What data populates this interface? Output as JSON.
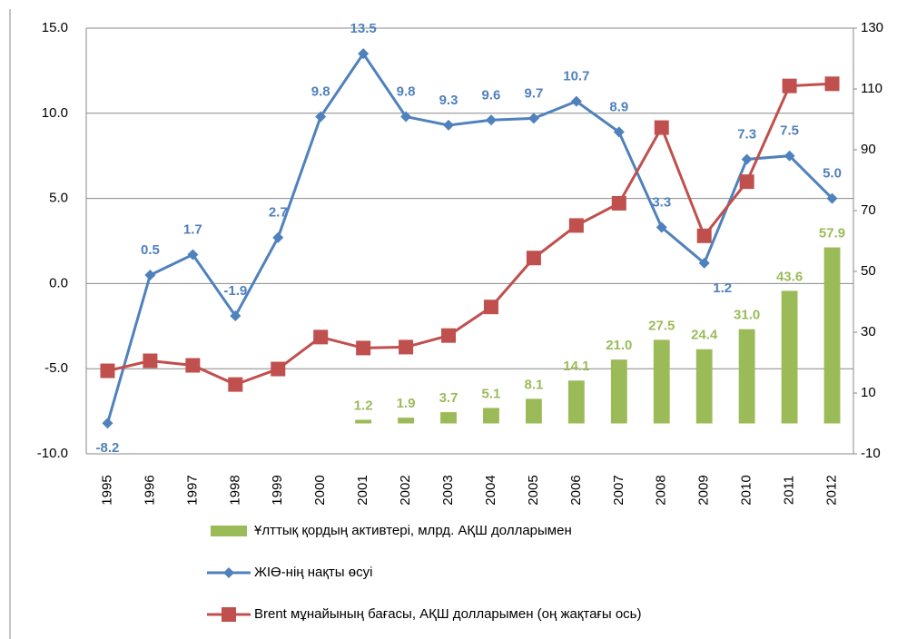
{
  "chart_data": {
    "type": "bar",
    "categories": [
      "1995",
      "1996",
      "1997",
      "1998",
      "1999",
      "2000",
      "2001",
      "2002",
      "2003",
      "2004",
      "2005",
      "2006",
      "2007",
      "2008",
      "2009",
      "2010",
      "2011",
      "2012"
    ],
    "series": [
      {
        "name": "Ұлттық қордың активтері, млрд. АҚШ долларымен",
        "type": "bar",
        "axis": "y2",
        "color": "#9bbb59",
        "values": [
          null,
          null,
          null,
          null,
          null,
          null,
          1.2,
          1.9,
          3.7,
          5.1,
          8.1,
          14.1,
          21.0,
          27.5,
          24.4,
          31.0,
          43.6,
          57.9
        ],
        "value_labels": [
          null,
          null,
          null,
          null,
          null,
          null,
          "1.2",
          "1.9",
          "3.7",
          "5.1",
          "8.1",
          "14.1",
          "21.0",
          "27.5",
          "24.4",
          "31.0",
          "43.6",
          "57.9"
        ]
      },
      {
        "name": "ЖІӨ-нің нақты өсуі",
        "type": "line",
        "axis": "y",
        "color": "#4f81bd",
        "values": [
          -8.2,
          0.5,
          1.7,
          -1.9,
          2.7,
          9.8,
          13.5,
          9.8,
          9.3,
          9.6,
          9.7,
          10.7,
          8.9,
          3.3,
          1.2,
          7.3,
          7.5,
          5.0
        ],
        "value_labels": [
          "-8.2",
          "0.5",
          "1.7",
          "-1.9",
          "2.7",
          "9.8",
          "13.5",
          "9.8",
          "9.3",
          "9.6",
          "9.7",
          "10.7",
          "8.9",
          "3.3",
          "1.2",
          "7.3",
          "7.5",
          "5.0"
        ]
      },
      {
        "name": "Brent мұнайының бағасы, АҚШ долларымен (оң жақтағы ось)",
        "type": "line",
        "axis": "y2",
        "color": "#c0504d",
        "values": [
          17.3,
          20.6,
          19.1,
          12.8,
          17.9,
          28.4,
          24.8,
          25.1,
          28.9,
          38.3,
          54.4,
          65.1,
          72.4,
          97.3,
          61.7,
          79.5,
          111.0,
          111.7
        ]
      }
    ],
    "ylim": [
      -10,
      15
    ],
    "yticks": [
      {
        "value": -10,
        "label": "-10.0"
      },
      {
        "value": -5,
        "label": "-5.0"
      },
      {
        "value": 0,
        "label": "0.0"
      },
      {
        "value": 5,
        "label": "5.0"
      },
      {
        "value": 10,
        "label": "10.0"
      },
      {
        "value": 15,
        "label": "15.0"
      }
    ],
    "y2lim": [
      -10,
      130
    ],
    "y2ticks": [
      -10,
      10,
      30,
      50,
      70,
      90,
      110,
      130
    ],
    "grid": true
  }
}
